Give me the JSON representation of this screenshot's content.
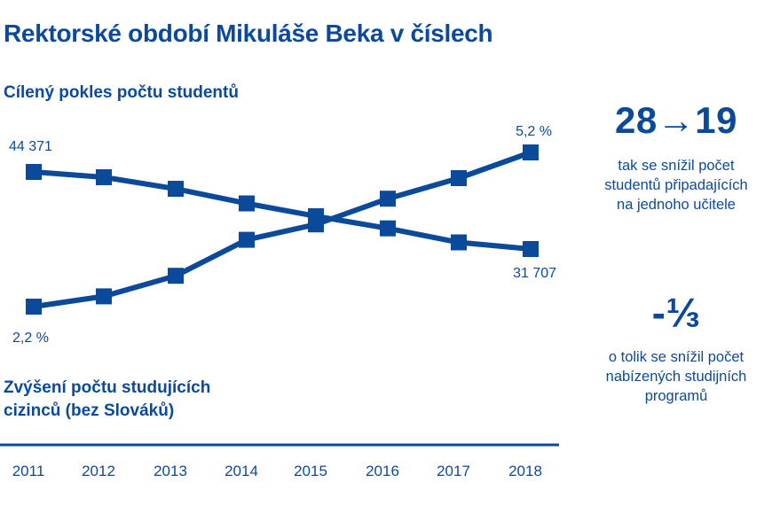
{
  "page": {
    "title": "Rektorské období Mikuláše Beka v číslech"
  },
  "colors": {
    "brand": "#0b4a9b",
    "background": "#ffffff"
  },
  "chart_data": {
    "type": "line",
    "x": [
      "2011",
      "2012",
      "2013",
      "2014",
      "2015",
      "2016",
      "2017",
      "2018"
    ],
    "series": [
      {
        "name": "Cílený pokles počtu studentů",
        "values": [
          44371,
          43500,
          41600,
          39200,
          37100,
          35100,
          32800,
          31707
        ],
        "value_labels": [
          {
            "index": 0,
            "text": "44 371"
          },
          {
            "index": 7,
            "text": "31 707"
          }
        ]
      },
      {
        "name": "Zvýšení počtu studujících cizinců (bez Slováků)",
        "values": [
          2.2,
          2.4,
          2.8,
          3.5,
          3.8,
          4.3,
          4.7,
          5.2
        ],
        "value_labels": [
          {
            "index": 0,
            "text": "2,2 %"
          },
          {
            "index": 7,
            "text": "5,2 %"
          }
        ]
      }
    ],
    "grid": false,
    "legend": "none"
  },
  "stats": [
    {
      "value": "28→19",
      "description": [
        "tak se snížil počet",
        "studentů připadajících",
        "na jednoho učitele"
      ]
    },
    {
      "value": "-⅓",
      "description": [
        "o tolik se snížil počet",
        "nabízených studijních",
        "programů"
      ]
    }
  ]
}
